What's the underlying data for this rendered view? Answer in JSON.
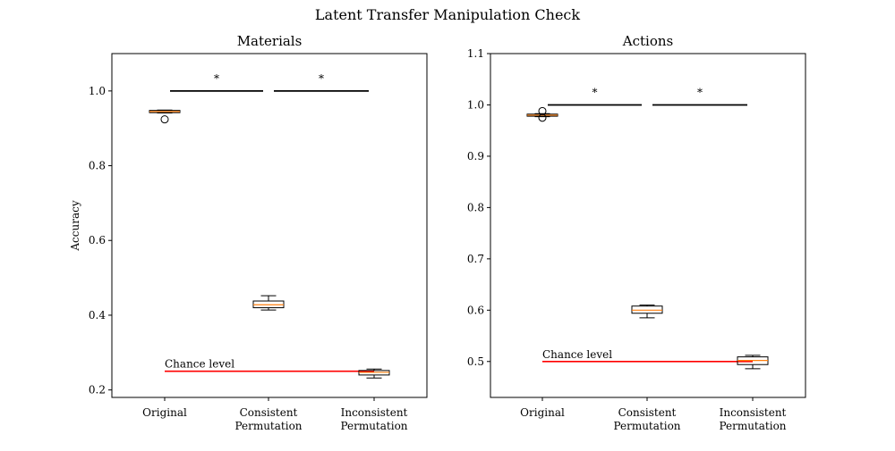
{
  "figure_title": "Latent Transfer Manipulation Check",
  "chart_data": [
    {
      "type": "box",
      "title": "Materials",
      "ylabel": "Accuracy",
      "xlabel": "",
      "categories": [
        "Original",
        "Consistent\nPermutation",
        "Inconsistent\nPermutation"
      ],
      "ylim": [
        0.18,
        1.1
      ],
      "yticks": [
        0.2,
        0.4,
        0.6,
        0.8,
        1.0
      ],
      "ytick_labels": [
        "0.2",
        "0.4",
        "0.6",
        "0.8",
        "1.0"
      ],
      "boxes": [
        {
          "whisker_low": 0.941,
          "q1": 0.942,
          "median": 0.945,
          "q3": 0.948,
          "whisker_high": 0.949,
          "outliers": [
            0.924
          ]
        },
        {
          "whisker_low": 0.414,
          "q1": 0.42,
          "median": 0.428,
          "q3": 0.438,
          "whisker_high": 0.452,
          "outliers": []
        },
        {
          "whisker_low": 0.232,
          "q1": 0.24,
          "median": 0.247,
          "q3": 0.252,
          "whisker_high": 0.256,
          "outliers": []
        }
      ],
      "chance_level": {
        "value": 0.25,
        "label": "Chance level",
        "color": "#ff0000"
      },
      "significance": [
        {
          "from": 0,
          "to": 1,
          "y": 1.0,
          "label": "*"
        },
        {
          "from": 1,
          "to": 2,
          "y": 1.0,
          "label": "*"
        }
      ]
    },
    {
      "type": "box",
      "title": "Actions",
      "ylabel": "",
      "xlabel": "",
      "categories": [
        "Original",
        "Consistent\nPermutation",
        "Inconsistent\nPermutation"
      ],
      "ylim": [
        0.43,
        1.1
      ],
      "yticks": [
        0.5,
        0.6,
        0.7,
        0.8,
        0.9,
        1.0,
        1.1
      ],
      "ytick_labels": [
        "0.5",
        "0.6",
        "0.7",
        "0.8",
        "0.9",
        "1.0",
        "1.1"
      ],
      "boxes": [
        {
          "whisker_low": 0.977,
          "q1": 0.978,
          "median": 0.98,
          "q3": 0.982,
          "whisker_high": 0.983,
          "outliers": [
            0.975,
            0.988
          ]
        },
        {
          "whisker_low": 0.585,
          "q1": 0.594,
          "median": 0.6,
          "q3": 0.608,
          "whisker_high": 0.61,
          "outliers": []
        },
        {
          "whisker_low": 0.486,
          "q1": 0.494,
          "median": 0.502,
          "q3": 0.509,
          "whisker_high": 0.512,
          "outliers": []
        }
      ],
      "chance_level": {
        "value": 0.5,
        "label": "Chance level",
        "color": "#ff0000"
      },
      "significance": [
        {
          "from": 0,
          "to": 1,
          "y": 1.0,
          "label": "*"
        },
        {
          "from": 1,
          "to": 2,
          "y": 1.0,
          "label": "*"
        }
      ]
    }
  ],
  "colors": {
    "median": "#ff7f0e",
    "box": "#000000",
    "chance": "#ff0000"
  }
}
